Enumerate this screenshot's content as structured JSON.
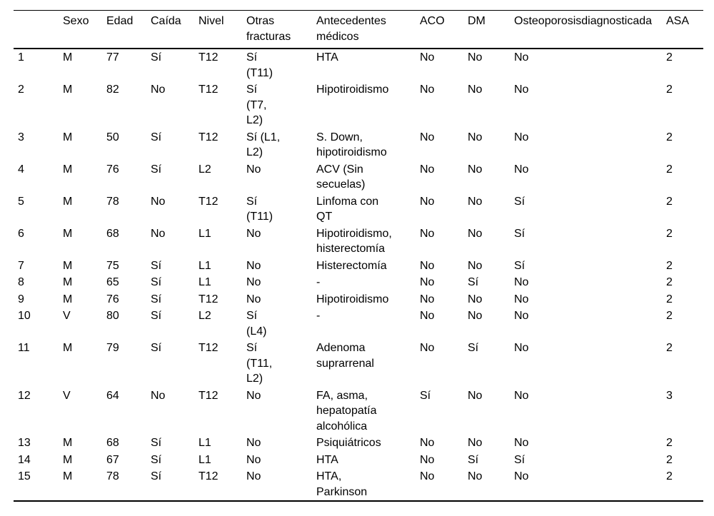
{
  "table": {
    "text_color": "#000000",
    "background_color": "#ffffff",
    "rule_color": "#000000",
    "columns": [
      {
        "key": "num",
        "label": ""
      },
      {
        "key": "sexo",
        "label": "Sexo"
      },
      {
        "key": "edad",
        "label": "Edad"
      },
      {
        "key": "caida",
        "label": "Caída"
      },
      {
        "key": "nivel",
        "label": "Nivel"
      },
      {
        "key": "otras-fracturas",
        "label": "Otras\nfracturas"
      },
      {
        "key": "antecedentes",
        "label": "Antecedentes\nmédicos"
      },
      {
        "key": "aco",
        "label": "ACO"
      },
      {
        "key": "dm",
        "label": "DM"
      },
      {
        "key": "osteoporosis",
        "label": "Osteoporosisdiagnosticada"
      },
      {
        "key": "asa",
        "label": "ASA"
      }
    ],
    "rows": [
      [
        "1",
        "M",
        "77",
        "Sí",
        "T12",
        "Sí\n(T11)",
        "HTA",
        "No",
        "No",
        "No",
        "2"
      ],
      [
        "2",
        "M",
        "82",
        "No",
        "T12",
        "Sí\n(T7,\nL2)",
        "Hipotiroidismo",
        "No",
        "No",
        "No",
        "2"
      ],
      [
        "3",
        "M",
        "50",
        "Sí",
        "T12",
        "Sí (L1,\nL2)",
        "S. Down,\nhipotiroidismo",
        "No",
        "No",
        "No",
        "2"
      ],
      [
        "4",
        "M",
        "76",
        "Sí",
        "L2",
        "No",
        "ACV (Sin\nsecuelas)",
        "No",
        "No",
        "No",
        "2"
      ],
      [
        "5",
        "M",
        "78",
        "No",
        "T12",
        "Sí\n(T11)",
        "Linfoma con\nQT",
        "No",
        "No",
        "Sí",
        "2"
      ],
      [
        "6",
        "M",
        "68",
        "No",
        "L1",
        "No",
        "Hipotiroidismo,\nhisterectomía",
        "No",
        "No",
        "Sí",
        "2"
      ],
      [
        "7",
        "M",
        "75",
        "Sí",
        "L1",
        "No",
        "Histerectomía",
        "No",
        "No",
        "Sí",
        "2"
      ],
      [
        "8",
        "M",
        "65",
        "Sí",
        "L1",
        "No",
        "-",
        "No",
        "Sí",
        "No",
        "2"
      ],
      [
        "9",
        "M",
        "76",
        "Sí",
        "T12",
        "No",
        "Hipotiroidismo",
        "No",
        "No",
        "No",
        "2"
      ],
      [
        "10",
        "V",
        "80",
        "Sí",
        "L2",
        "Sí\n(L4)",
        "-",
        "No",
        "No",
        "No",
        "2"
      ],
      [
        "11",
        "M",
        "79",
        "Sí",
        "T12",
        "Sí\n(T11,\nL2)",
        "Adenoma\nsuprarrenal",
        "No",
        "Sí",
        "No",
        "2"
      ],
      [
        "12",
        "V",
        "64",
        "No",
        "T12",
        "No",
        "FA, asma,\nhepatopatía\nalcohólica",
        "Sí",
        "No",
        "No",
        "3"
      ],
      [
        "13",
        "M",
        "68",
        "Sí",
        "L1",
        "No",
        "Psiquiátricos",
        "No",
        "No",
        "No",
        "2"
      ],
      [
        "14",
        "M",
        "67",
        "Sí",
        "L1",
        "No",
        "HTA",
        "No",
        "Sí",
        "Sí",
        "2"
      ],
      [
        "15",
        "M",
        "78",
        "Sí",
        "T12",
        "No",
        "HTA,\nParkinson",
        "No",
        "No",
        "No",
        "2"
      ]
    ]
  }
}
